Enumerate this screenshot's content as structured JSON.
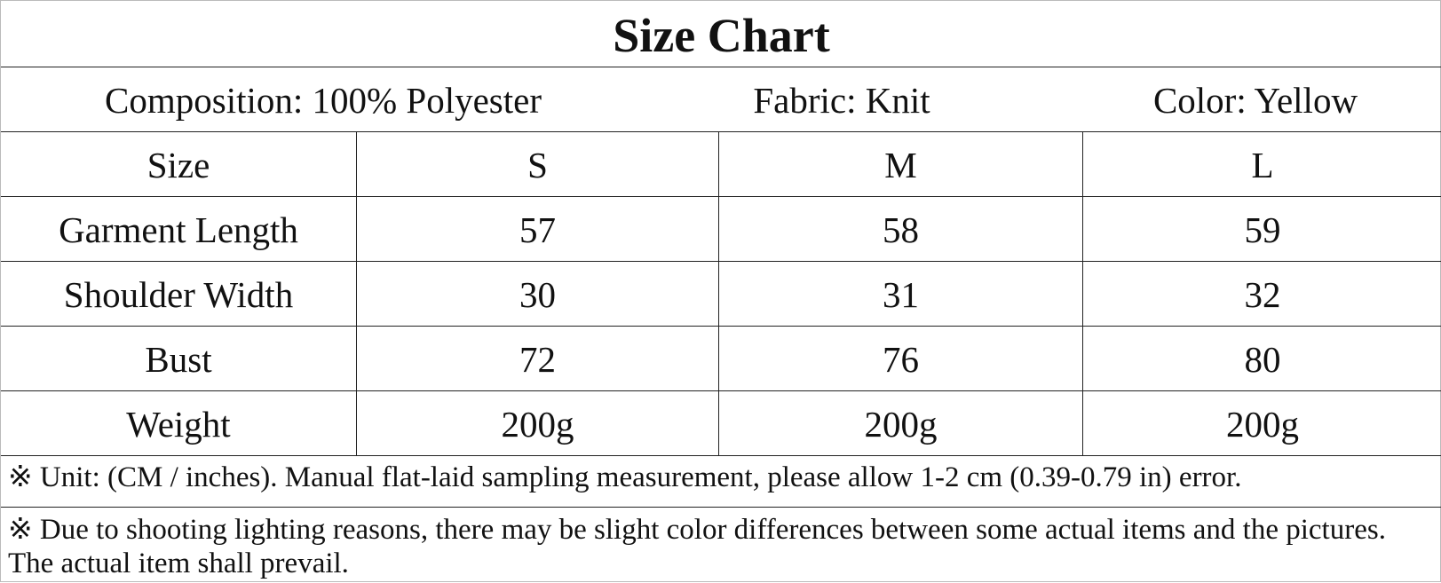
{
  "header": {
    "title": "Size Chart"
  },
  "info": {
    "composition": "Composition: 100% Polyester",
    "fabric": "Fabric: Knit",
    "color": "Color: Yellow"
  },
  "table": {
    "columns": [
      "Size",
      "S",
      "M",
      "L"
    ],
    "rows": [
      [
        "Garment Length",
        57,
        58,
        59
      ],
      [
        "Shoulder Width",
        30,
        31,
        32
      ],
      [
        "Bust",
        72,
        76,
        80
      ],
      [
        "Weight",
        "200g",
        "200g",
        "200g"
      ]
    ]
  },
  "notes": [
    "※ Unit: (CM / inches). Manual flat-laid sampling measurement, please allow 1-2 cm (0.39-0.79 in) error.",
    "※ Due to shooting lighting reasons, there may be slight color differences between some actual items and the pictures. The actual item shall prevail."
  ]
}
